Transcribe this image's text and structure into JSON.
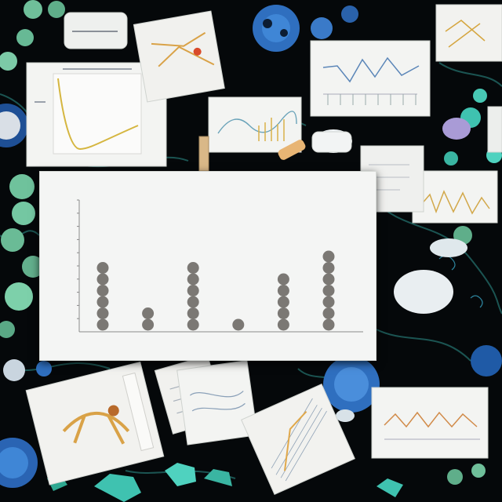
{
  "scene": {
    "background": "#05080a",
    "accent_colors": [
      "#2f6fbf",
      "#6fc9a6",
      "#3fc2b0",
      "#1a3a5a"
    ]
  },
  "main_chart": {
    "title": "",
    "ylabel": "",
    "xlabel": ""
  },
  "chart_data": {
    "type": "scatter",
    "style": "dot-plot (stacked markers per category)",
    "categories": [
      "",
      "",
      "",
      "",
      "",
      ""
    ],
    "values": [
      6,
      2,
      6,
      1,
      5,
      7
    ],
    "ylim": [
      0,
      10
    ],
    "marker_color": "#7b7874",
    "grid": false
  }
}
